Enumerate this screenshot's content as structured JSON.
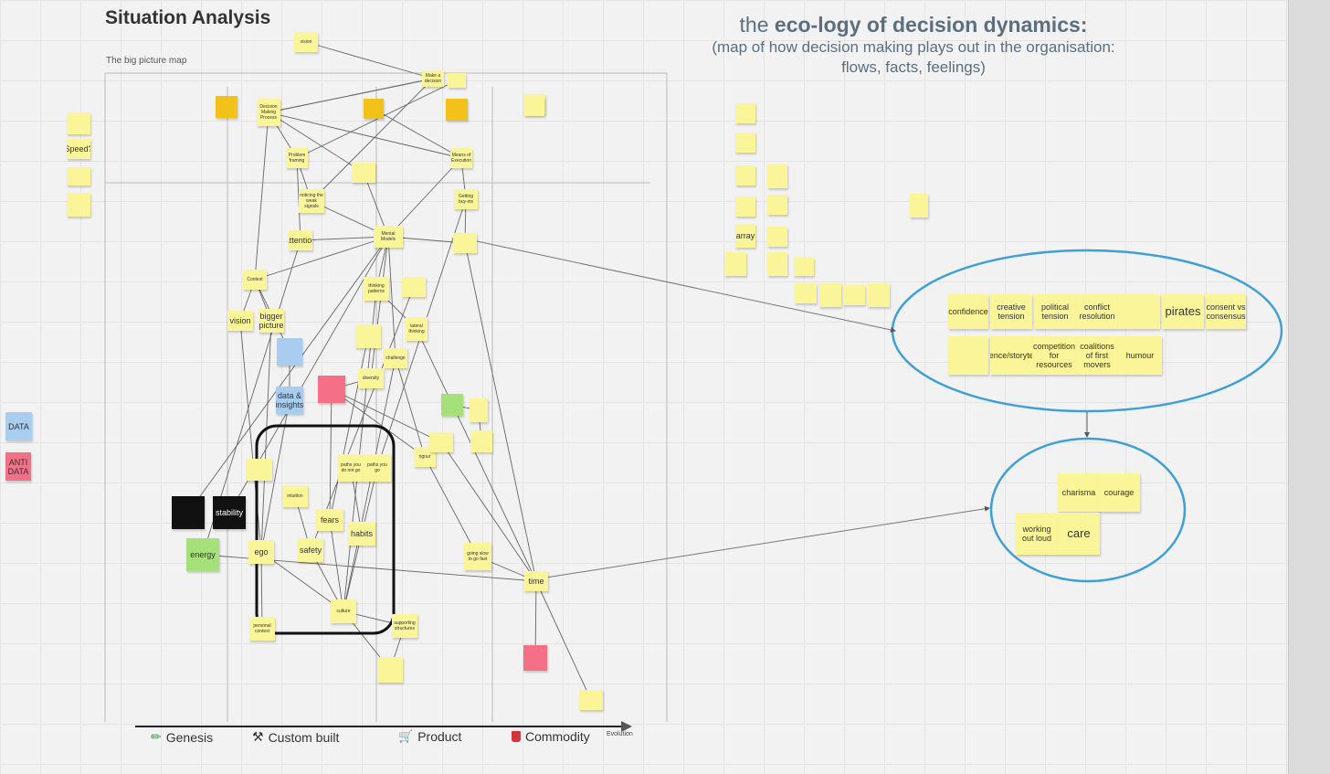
{
  "title": "Situation Analysis",
  "subtitle": "The big picture map",
  "header": {
    "line1_prefix": "the ",
    "line1_bold": "eco-logy of decision dynamics:",
    "line2": "(map of how decision making plays out in the organisation:",
    "line3": "flows, facts, feelings)"
  },
  "legend": {
    "data": "DATA",
    "anti_data": "ANTI DATA"
  },
  "axis": {
    "evolution": "Evolution",
    "stages": [
      {
        "label": "Genesis",
        "icon": "pencil-icon"
      },
      {
        "label": "Custom built",
        "icon": "tools-icon"
      },
      {
        "label": "Product",
        "icon": "cart-icon"
      },
      {
        "label": "Commodity",
        "icon": "bucket-icon"
      }
    ],
    "stage_notes": [
      "",
      "",
      "",
      ""
    ]
  },
  "map_notes": [
    {
      "id": "vision_top",
      "text": "vision",
      "color": "yellow"
    },
    {
      "id": "make_decision",
      "text": "Make a decision",
      "color": "yellow"
    },
    {
      "id": "n_top2",
      "text": "",
      "color": "yellow"
    },
    {
      "id": "orange1",
      "text": "",
      "color": "orange"
    },
    {
      "id": "decision_process",
      "text": "Decision Making Process",
      "color": "yellow"
    },
    {
      "id": "orange2",
      "text": "",
      "color": "orange"
    },
    {
      "id": "orange3",
      "text": "",
      "color": "orange"
    },
    {
      "id": "n_top3",
      "text": "",
      "color": "yellow"
    },
    {
      "id": "problem_framing",
      "text": "Problem framing",
      "color": "yellow"
    },
    {
      "id": "n_mid1",
      "text": "",
      "color": "yellow"
    },
    {
      "id": "means_execution",
      "text": "Means of Execution",
      "color": "yellow"
    },
    {
      "id": "noticing_signals",
      "text": "noticing the weak signals",
      "color": "yellow"
    },
    {
      "id": "getting_buyin",
      "text": "Getting buy-ins",
      "color": "yellow"
    },
    {
      "id": "attention",
      "text": "attention",
      "color": "yellow"
    },
    {
      "id": "mental_models",
      "text": "Mental Models",
      "color": "yellow"
    },
    {
      "id": "n_right1",
      "text": "",
      "color": "yellow"
    },
    {
      "id": "context",
      "text": "Context",
      "color": "yellow"
    },
    {
      "id": "thinking_patterns",
      "text": "thinking patterns",
      "color": "yellow"
    },
    {
      "id": "n_mid2",
      "text": "",
      "color": "yellow"
    },
    {
      "id": "vision_left",
      "text": "vision",
      "color": "yellow"
    },
    {
      "id": "bigger_picture",
      "text": "bigger picture",
      "color": "yellow"
    },
    {
      "id": "lateral_thinking",
      "text": "lateral thinking",
      "color": "yellow"
    },
    {
      "id": "understanding",
      "text": "",
      "color": "blue"
    },
    {
      "id": "n_mid3",
      "text": "",
      "color": "yellow"
    },
    {
      "id": "challenge",
      "text": "challenge",
      "color": "yellow"
    },
    {
      "id": "diversity",
      "text": "diversity",
      "color": "yellow"
    },
    {
      "id": "red_note",
      "text": "",
      "color": "red"
    },
    {
      "id": "data_insights",
      "text": "data & insights",
      "color": "blue"
    },
    {
      "id": "green_small",
      "text": "",
      "color": "green"
    },
    {
      "id": "n_right2",
      "text": "",
      "color": "yellow"
    },
    {
      "id": "n_right3",
      "text": "",
      "color": "yellow"
    },
    {
      "id": "rigour",
      "text": "rigour",
      "color": "yellow"
    },
    {
      "id": "n_mid4",
      "text": "",
      "color": "yellow"
    },
    {
      "id": "paths_not_go",
      "text": "paths you do not go",
      "color": "yellow"
    },
    {
      "id": "paths_go",
      "text": "paths you go",
      "color": "yellow"
    },
    {
      "id": "n_left1",
      "text": "",
      "color": "yellow"
    },
    {
      "id": "intuition",
      "text": "intuition",
      "color": "yellow"
    },
    {
      "id": "fears",
      "text": "fears",
      "color": "yellow"
    },
    {
      "id": "habits",
      "text": "habits",
      "color": "yellow"
    },
    {
      "id": "black1",
      "text": "",
      "color": "black"
    },
    {
      "id": "stability",
      "text": "stability",
      "color": "black"
    },
    {
      "id": "energy",
      "text": "energy",
      "color": "green"
    },
    {
      "id": "ego",
      "text": "ego",
      "color": "yellow"
    },
    {
      "id": "safety",
      "text": "safety",
      "color": "yellow"
    },
    {
      "id": "going_slow",
      "text": "going slow to go fast",
      "color": "yellow"
    },
    {
      "id": "time",
      "text": "time",
      "color": "yellow"
    },
    {
      "id": "culture",
      "text": "culture",
      "color": "yellow"
    },
    {
      "id": "personal_context",
      "text": "personal context",
      "color": "yellow"
    },
    {
      "id": "supporting",
      "text": "supporting structures",
      "color": "yellow"
    },
    {
      "id": "n_bottom1",
      "text": "",
      "color": "yellow"
    },
    {
      "id": "red_bottom",
      "text": "",
      "color": "red"
    },
    {
      "id": "n_bottom2",
      "text": "",
      "color": "yellow"
    },
    {
      "id": "n_far1",
      "text": "",
      "color": "yellow"
    },
    {
      "id": "speed",
      "text": "Speed?",
      "color": "yellow"
    },
    {
      "id": "n_far2",
      "text": "",
      "color": "yellow"
    },
    {
      "id": "n_far3",
      "text": "",
      "color": "yellow"
    },
    {
      "id": "n_top4",
      "text": "",
      "color": "yellow"
    }
  ],
  "scatter_notes": [
    {
      "id": "s1",
      "text": ""
    },
    {
      "id": "s2",
      "text": ""
    },
    {
      "id": "s3",
      "text": ""
    },
    {
      "id": "s4",
      "text": ""
    },
    {
      "id": "s5",
      "text": ""
    },
    {
      "id": "s6",
      "text": ""
    },
    {
      "id": "s7",
      "text": "array"
    },
    {
      "id": "s8",
      "text": ""
    },
    {
      "id": "s9",
      "text": ""
    },
    {
      "id": "s10",
      "text": ""
    },
    {
      "id": "s11",
      "text": ""
    },
    {
      "id": "s12",
      "text": ""
    },
    {
      "id": "s13",
      "text": ""
    },
    {
      "id": "s14",
      "text": ""
    },
    {
      "id": "s15",
      "text": ""
    },
    {
      "id": "s16",
      "text": ""
    }
  ],
  "cluster1": [
    {
      "text": "confidence"
    },
    {
      "text": "creative tension"
    },
    {
      "text": "political tension"
    },
    {
      "text": "conflict resolution"
    },
    {
      "text": ""
    },
    {
      "text": "pirates"
    },
    {
      "text": "consent vs consensus"
    },
    {
      "text": ""
    },
    {
      "text": "influence/storytelling"
    },
    {
      "text": "competition for resources"
    },
    {
      "text": "coalitions of first movers"
    },
    {
      "text": "humour"
    }
  ],
  "cluster2": [
    {
      "text": "charisma"
    },
    {
      "text": "courage"
    },
    {
      "text": "working out loud"
    },
    {
      "text": "care"
    }
  ]
}
